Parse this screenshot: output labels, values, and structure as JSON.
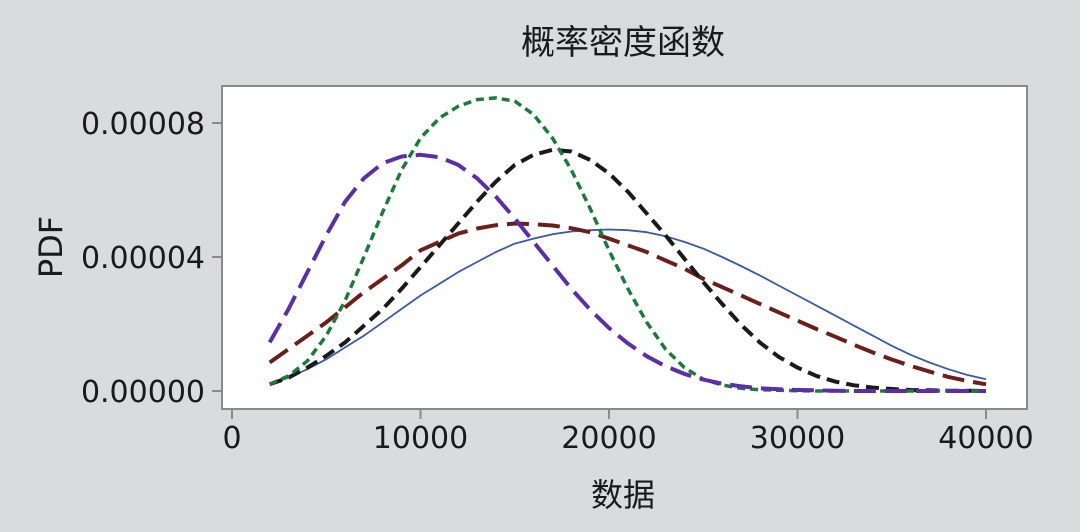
{
  "chart_data": {
    "type": "line",
    "title": "概率密度函数",
    "xlabel": "数据",
    "ylabel": "PDF",
    "xlim": [
      0,
      40000
    ],
    "ylim": [
      0,
      9e-05
    ],
    "xticks": [
      0,
      10000,
      20000,
      30000,
      40000
    ],
    "xtick_labels": [
      "0",
      "10000",
      "20000",
      "30000",
      "40000"
    ],
    "yticks": [
      0,
      4e-05,
      8e-05
    ],
    "ytick_labels": [
      "0.00000",
      "0.00004",
      "0.00008"
    ],
    "grid": false,
    "legend": "none",
    "x": [
      2000,
      3000,
      4000,
      5000,
      6000,
      7000,
      8000,
      9000,
      10000,
      11000,
      12000,
      13000,
      14000,
      15000,
      16000,
      17000,
      18000,
      19000,
      20000,
      21000,
      22000,
      23000,
      24000,
      25000,
      26000,
      27000,
      28000,
      29000,
      30000,
      31000,
      32000,
      33000,
      34000,
      35000,
      36000,
      37000,
      38000,
      39000,
      40000
    ],
    "series": [
      {
        "color": "#3a5aa8",
        "style": "solid",
        "values": [
          2e-06,
          4e-06,
          6.5e-06,
          9.5e-06,
          1.3e-05,
          1.65e-05,
          2.05e-05,
          2.45e-05,
          2.85e-05,
          3.2e-05,
          3.55e-05,
          3.85e-05,
          4.15e-05,
          4.4e-05,
          4.55e-05,
          4.68e-05,
          4.76e-05,
          4.8e-05,
          4.82e-05,
          4.8e-05,
          4.74e-05,
          4.62e-05,
          4.45e-05,
          4.25e-05,
          4e-05,
          3.73e-05,
          3.45e-05,
          3.15e-05,
          2.85e-05,
          2.55e-05,
          2.25e-05,
          1.95e-05,
          1.65e-05,
          1.35e-05,
          1.08e-05,
          8.5e-06,
          6.5e-06,
          4.8e-06,
          3.5e-06
        ]
      },
      {
        "color": "#6a1f1a",
        "style": "longdash",
        "values": [
          8.5e-06,
          1.25e-05,
          1.65e-05,
          2.05e-05,
          2.5e-05,
          2.95e-05,
          3.35e-05,
          3.75e-05,
          4.2e-05,
          4.45e-05,
          4.7e-05,
          4.85e-05,
          4.95e-05,
          5e-05,
          4.98e-05,
          4.94e-05,
          4.86e-05,
          4.74e-05,
          4.55e-05,
          4.35e-05,
          4.15e-05,
          3.9e-05,
          3.65e-05,
          3.35e-05,
          3.1e-05,
          2.85e-05,
          2.6e-05,
          2.35e-05,
          2.1e-05,
          1.85e-05,
          1.62e-05,
          1.38e-05,
          1.15e-05,
          9.4e-06,
          7.5e-06,
          5.8e-06,
          4.2e-06,
          3e-06,
          2e-06
        ]
      },
      {
        "color": "#1a1a1a",
        "style": "dash",
        "values": [
          2e-06,
          4e-06,
          7e-06,
          1.05e-05,
          1.45e-05,
          1.95e-05,
          2.45e-05,
          3.05e-05,
          3.7e-05,
          4.35e-05,
          5e-05,
          5.65e-05,
          6.25e-05,
          6.75e-05,
          7.05e-05,
          7.2e-05,
          7.15e-05,
          6.9e-05,
          6.5e-05,
          5.95e-05,
          5.3e-05,
          4.65e-05,
          3.95e-05,
          3.25e-05,
          2.6e-05,
          1.98e-05,
          1.45e-05,
          1.02e-05,
          7e-06,
          4.5e-06,
          2.8e-06,
          1.7e-06,
          1e-06,
          6e-07,
          3e-07,
          2e-07,
          1e-07,
          1e-07,
          0
        ]
      },
      {
        "color": "#1d7a3c",
        "style": "shortdash",
        "values": [
          2e-06,
          4.5e-06,
          9e-06,
          1.65e-05,
          2.7e-05,
          4e-05,
          5.35e-05,
          6.6e-05,
          7.55e-05,
          8.15e-05,
          8.5e-05,
          8.7e-05,
          8.75e-05,
          8.65e-05,
          8.25e-05,
          7.55e-05,
          6.6e-05,
          5.45e-05,
          4.2e-05,
          3.05e-05,
          2.05e-05,
          1.25e-05,
          7e-06,
          3.5e-06,
          1.8e-06,
          8e-07,
          4e-07,
          2e-07,
          1e-07,
          0,
          0,
          0,
          0,
          0,
          0,
          0,
          0,
          0,
          0
        ]
      },
      {
        "color": "#5a2ea6",
        "style": "longdash",
        "values": [
          1.45e-05,
          2.45e-05,
          3.55e-05,
          4.65e-05,
          5.65e-05,
          6.35e-05,
          6.8e-05,
          7e-05,
          7.05e-05,
          6.98e-05,
          6.75e-05,
          6.35e-05,
          5.8e-05,
          5.15e-05,
          4.45e-05,
          3.75e-05,
          3.05e-05,
          2.43e-05,
          1.88e-05,
          1.42e-05,
          1.04e-05,
          7.4e-06,
          5.1e-06,
          3.4e-06,
          2.2e-06,
          1.4e-06,
          8e-07,
          5e-07,
          3e-07,
          2e-07,
          1e-07,
          0,
          0,
          0,
          0,
          0,
          0,
          0,
          0
        ]
      }
    ]
  }
}
